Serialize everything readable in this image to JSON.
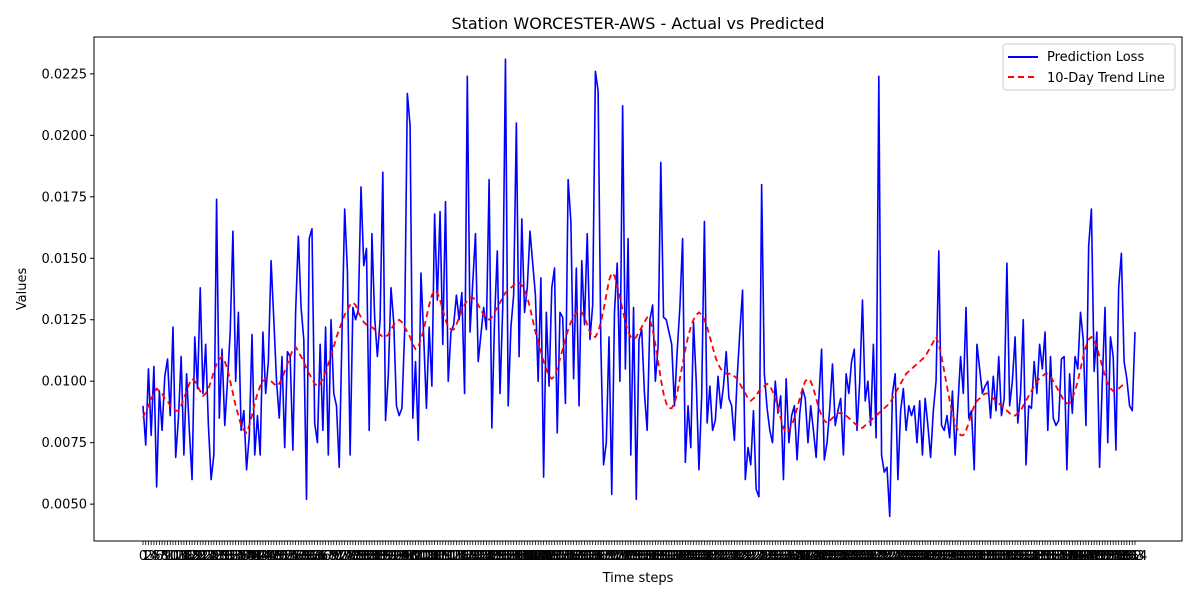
{
  "chart_data": {
    "type": "line",
    "title": "Station WORCESTER-AWS - Actual vs Predicted",
    "xlabel": "Time steps",
    "ylabel": "Values",
    "ylim": [
      0.0035,
      0.024
    ],
    "y_ticks": [
      "0.0050",
      "0.0075",
      "0.0100",
      "0.0125",
      "0.0150",
      "0.0175",
      "0.0200",
      "0.0225"
    ],
    "grid": false,
    "legend_position": "top-right",
    "x_tick_labels_overlapping": true,
    "x_count": 365,
    "series": [
      {
        "name": "Prediction Loss",
        "style": "solid",
        "color": "#0000ff",
        "values": [
          0.009,
          0.0074,
          0.0105,
          0.0078,
          0.0106,
          0.0057,
          0.0096,
          0.008,
          0.0102,
          0.0109,
          0.0086,
          0.0122,
          0.0069,
          0.0085,
          0.011,
          0.007,
          0.0103,
          0.008,
          0.006,
          0.0118,
          0.0097,
          0.0138,
          0.0095,
          0.0115,
          0.0082,
          0.006,
          0.007,
          0.0174,
          0.0085,
          0.0113,
          0.0082,
          0.01,
          0.012,
          0.0161,
          0.01,
          0.0128,
          0.008,
          0.0088,
          0.0064,
          0.0078,
          0.0119,
          0.007,
          0.0086,
          0.007,
          0.012,
          0.0095,
          0.0108,
          0.0149,
          0.0125,
          0.01,
          0.0085,
          0.011,
          0.0073,
          0.0112,
          0.011,
          0.0072,
          0.0128,
          0.0159,
          0.013,
          0.0117,
          0.0052,
          0.0158,
          0.0162,
          0.0083,
          0.0075,
          0.0115,
          0.008,
          0.0122,
          0.007,
          0.0125,
          0.0095,
          0.009,
          0.0065,
          0.0118,
          0.017,
          0.0145,
          0.007,
          0.013,
          0.0125,
          0.0129,
          0.0179,
          0.0147,
          0.0154,
          0.008,
          0.016,
          0.0126,
          0.011,
          0.0125,
          0.0185,
          0.0084,
          0.0102,
          0.0138,
          0.0124,
          0.009,
          0.0086,
          0.0089,
          0.012,
          0.0217,
          0.0204,
          0.0085,
          0.0108,
          0.0076,
          0.0144,
          0.0118,
          0.0089,
          0.0122,
          0.0098,
          0.0168,
          0.0133,
          0.0169,
          0.0115,
          0.0173,
          0.01,
          0.012,
          0.0123,
          0.0135,
          0.0125,
          0.0136,
          0.0095,
          0.0224,
          0.012,
          0.014,
          0.016,
          0.0108,
          0.0119,
          0.013,
          0.0121,
          0.0182,
          0.0081,
          0.0125,
          0.0153,
          0.0095,
          0.013,
          0.0231,
          0.009,
          0.0122,
          0.0135,
          0.0205,
          0.011,
          0.0166,
          0.0128,
          0.0138,
          0.0161,
          0.0148,
          0.0135,
          0.01,
          0.0142,
          0.0061,
          0.0128,
          0.0098,
          0.0138,
          0.0146,
          0.0079,
          0.0128,
          0.0126,
          0.0091,
          0.0182,
          0.0165,
          0.0101,
          0.0146,
          0.009,
          0.0149,
          0.0123,
          0.016,
          0.0117,
          0.0131,
          0.0226,
          0.0218,
          0.0115,
          0.0066,
          0.0075,
          0.0118,
          0.0054,
          0.0128,
          0.0148,
          0.01,
          0.0212,
          0.0105,
          0.0158,
          0.007,
          0.013,
          0.0052,
          0.0117,
          0.0121,
          0.0095,
          0.008,
          0.0125,
          0.0131,
          0.01,
          0.0114,
          0.0189,
          0.0126,
          0.0125,
          0.012,
          0.0115,
          0.009,
          0.0112,
          0.013,
          0.0158,
          0.0067,
          0.009,
          0.0073,
          0.0124,
          0.01,
          0.0064,
          0.0094,
          0.0165,
          0.0083,
          0.0098,
          0.008,
          0.0084,
          0.0102,
          0.0089,
          0.0098,
          0.0112,
          0.0093,
          0.009,
          0.0076,
          0.0101,
          0.012,
          0.0137,
          0.006,
          0.0073,
          0.0066,
          0.0088,
          0.0056,
          0.0053,
          0.018,
          0.0103,
          0.0089,
          0.008,
          0.0075,
          0.01,
          0.0087,
          0.0094,
          0.006,
          0.0101,
          0.0075,
          0.0086,
          0.009,
          0.0068,
          0.0087,
          0.0097,
          0.0093,
          0.0075,
          0.009,
          0.008,
          0.0069,
          0.0093,
          0.0113,
          0.0068,
          0.0075,
          0.0089,
          0.0107,
          0.0082,
          0.0088,
          0.0093,
          0.007,
          0.0103,
          0.0095,
          0.0108,
          0.0113,
          0.008,
          0.01,
          0.0133,
          0.0092,
          0.01,
          0.0082,
          0.0115,
          0.0077,
          0.0224,
          0.007,
          0.0063,
          0.0065,
          0.0045,
          0.0095,
          0.0103,
          0.006,
          0.0088,
          0.0097,
          0.008,
          0.009,
          0.0086,
          0.009,
          0.0075,
          0.0092,
          0.007,
          0.0093,
          0.0082,
          0.0069,
          0.0088,
          0.01,
          0.0153,
          0.0082,
          0.008,
          0.0086,
          0.0077,
          0.0096,
          0.007,
          0.009,
          0.011,
          0.0095,
          0.013,
          0.0085,
          0.0088,
          0.0064,
          0.0115,
          0.0105,
          0.0095,
          0.0098,
          0.01,
          0.0085,
          0.0102,
          0.0088,
          0.011,
          0.0086,
          0.0093,
          0.0148,
          0.009,
          0.01,
          0.0118,
          0.0083,
          0.0095,
          0.0125,
          0.0066,
          0.009,
          0.0089,
          0.0108,
          0.0095,
          0.0115,
          0.0105,
          0.012,
          0.008,
          0.011,
          0.0085,
          0.0082,
          0.0084,
          0.0109,
          0.011,
          0.0064,
          0.0103,
          0.0087,
          0.011,
          0.0105,
          0.0128,
          0.0117,
          0.0082,
          0.0155,
          0.017,
          0.0104,
          0.012,
          0.0065,
          0.01,
          0.013,
          0.0075,
          0.0118,
          0.011,
          0.0072,
          0.0138,
          0.0152,
          0.0108,
          0.0101,
          0.009,
          0.0088,
          0.012
        ]
      },
      {
        "name": "10-Day Trend Line",
        "style": "dashed",
        "color": "#ff0000",
        "values": [
          0.0085,
          0.0088,
          0.009,
          0.0093,
          0.0095,
          0.0097,
          0.0096,
          0.0095,
          0.0093,
          0.0092,
          0.009,
          0.0089,
          0.0088,
          0.0088,
          0.009,
          0.0093,
          0.0096,
          0.0099,
          0.0101,
          0.01,
          0.0098,
          0.0096,
          0.0094,
          0.0095,
          0.0097,
          0.01,
          0.0104,
          0.0107,
          0.0109,
          0.011,
          0.0108,
          0.0105,
          0.01,
          0.0095,
          0.009,
          0.0086,
          0.0082,
          0.008,
          0.0079,
          0.0082,
          0.0086,
          0.0091,
          0.0095,
          0.0098,
          0.01,
          0.0101,
          0.0101,
          0.01,
          0.0099,
          0.0098,
          0.0099,
          0.0101,
          0.0104,
          0.0107,
          0.011,
          0.0113,
          0.0114,
          0.0112,
          0.011,
          0.0108,
          0.0105,
          0.0103,
          0.0101,
          0.0099,
          0.0098,
          0.0099,
          0.0101,
          0.0104,
          0.0107,
          0.011,
          0.0114,
          0.0118,
          0.0121,
          0.0124,
          0.0127,
          0.0129,
          0.0131,
          0.0132,
          0.0131,
          0.0128,
          0.0126,
          0.0124,
          0.0123,
          0.0122,
          0.0122,
          0.0121,
          0.012,
          0.0119,
          0.0118,
          0.0118,
          0.0119,
          0.0121,
          0.0123,
          0.0124,
          0.0125,
          0.0124,
          0.0122,
          0.012,
          0.0118,
          0.0115,
          0.0113,
          0.0114,
          0.0117,
          0.0121,
          0.0126,
          0.0131,
          0.0135,
          0.0137,
          0.0136,
          0.0133,
          0.0129,
          0.0125,
          0.0122,
          0.0121,
          0.0121,
          0.0123,
          0.0126,
          0.0129,
          0.0131,
          0.0133,
          0.0134,
          0.0134,
          0.0133,
          0.0131,
          0.0129,
          0.0127,
          0.0126,
          0.0125,
          0.0126,
          0.0128,
          0.013,
          0.0132,
          0.0134,
          0.0136,
          0.0137,
          0.0138,
          0.0139,
          0.014,
          0.014,
          0.0139,
          0.0137,
          0.0134,
          0.013,
          0.0125,
          0.012,
          0.0116,
          0.0112,
          0.0108,
          0.0105,
          0.0102,
          0.0101,
          0.0102,
          0.0105,
          0.0109,
          0.0113,
          0.0117,
          0.0121,
          0.0124,
          0.0126,
          0.0128,
          0.0129,
          0.0128,
          0.0126,
          0.0123,
          0.012,
          0.0118,
          0.0118,
          0.012,
          0.0124,
          0.0129,
          0.0135,
          0.0141,
          0.0144,
          0.0143,
          0.0139,
          0.0134,
          0.0129,
          0.0124,
          0.012,
          0.0118,
          0.0117,
          0.0118,
          0.012,
          0.0122,
          0.0124,
          0.0126,
          0.0125,
          0.0121,
          0.0115,
          0.0108,
          0.0101,
          0.0095,
          0.0091,
          0.0089,
          0.0089,
          0.0091,
          0.0095,
          0.0101,
          0.0107,
          0.0113,
          0.0118,
          0.0122,
          0.0125,
          0.0127,
          0.0128,
          0.0127,
          0.0125,
          0.0122,
          0.0118,
          0.0114,
          0.011,
          0.0107,
          0.0105,
          0.0104,
          0.0103,
          0.0103,
          0.0103,
          0.0102,
          0.0101,
          0.0099,
          0.0097,
          0.0095,
          0.0093,
          0.0092,
          0.0093,
          0.0094,
          0.0096,
          0.0097,
          0.0098,
          0.0099,
          0.0098,
          0.0096,
          0.0093,
          0.0089,
          0.0085,
          0.0081,
          0.0079,
          0.008,
          0.0082,
          0.0085,
          0.0089,
          0.0093,
          0.0097,
          0.01,
          0.0101,
          0.01,
          0.0097,
          0.0093,
          0.0089,
          0.0086,
          0.0084,
          0.0083,
          0.0084,
          0.0085,
          0.0086,
          0.0087,
          0.0087,
          0.0087,
          0.0086,
          0.0085,
          0.0084,
          0.0083,
          0.0082,
          0.0081,
          0.0081,
          0.0082,
          0.0083,
          0.0084,
          0.0085,
          0.0086,
          0.0087,
          0.0088,
          0.0089,
          0.009,
          0.0091,
          0.0093,
          0.0095,
          0.0097,
          0.0099,
          0.0101,
          0.0103,
          0.0104,
          0.0105,
          0.0106,
          0.0107,
          0.0108,
          0.0109,
          0.011,
          0.0112,
          0.0114,
          0.0116,
          0.0118,
          0.0115,
          0.011,
          0.0104,
          0.0098,
          0.0092,
          0.0087,
          0.0083,
          0.008,
          0.0078,
          0.0078,
          0.008,
          0.0083,
          0.0087,
          0.009,
          0.0092,
          0.0093,
          0.0094,
          0.0095,
          0.0095,
          0.0094,
          0.0093,
          0.0092,
          0.0091,
          0.009,
          0.0089,
          0.0088,
          0.0087,
          0.0086,
          0.0086,
          0.0087,
          0.0088,
          0.009,
          0.0092,
          0.0094,
          0.0096,
          0.0098,
          0.01,
          0.0101,
          0.0102,
          0.0103,
          0.0103,
          0.0102,
          0.01,
          0.0098,
          0.0096,
          0.0094,
          0.0092,
          0.0091,
          0.0091,
          0.0093,
          0.0096,
          0.01,
          0.0105,
          0.011,
          0.0114,
          0.0117,
          0.0118,
          0.0117,
          0.0114,
          0.011,
          0.0106,
          0.0102,
          0.0099,
          0.0097,
          0.0096,
          0.0096,
          0.0097,
          0.0098,
          0.0099
        ]
      }
    ]
  }
}
